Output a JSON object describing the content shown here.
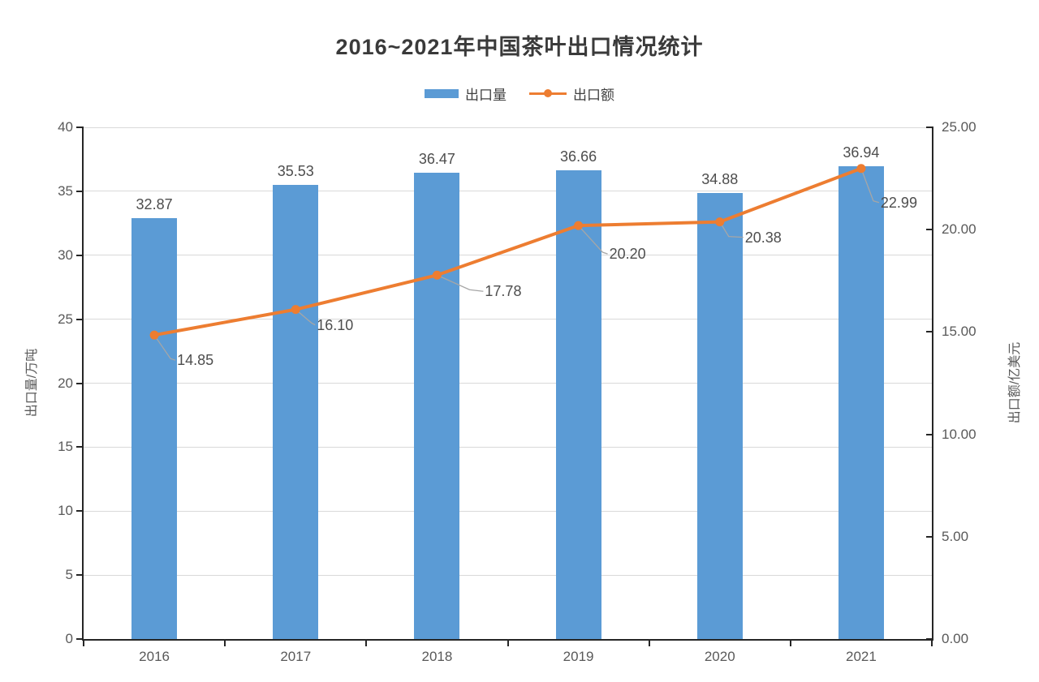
{
  "title": "2016~2021年中国茶叶出口情况统计",
  "legend": {
    "items": [
      {
        "label": "出口量",
        "type": "bar",
        "color": "#5B9BD5"
      },
      {
        "label": "出口额",
        "type": "line",
        "color": "#ED7D31"
      }
    ]
  },
  "chart_data": {
    "type": "combo-bar-line",
    "title": "2016~2021年中国茶叶出口情况统计",
    "categories": [
      "2016",
      "2017",
      "2018",
      "2019",
      "2020",
      "2021"
    ],
    "series": [
      {
        "name": "出口量",
        "type": "bar",
        "axis": "left",
        "color": "#5B9BD5",
        "values": [
          32.87,
          35.53,
          36.47,
          36.66,
          34.88,
          36.94
        ],
        "labels": [
          "32.87",
          "35.53",
          "36.47",
          "36.66",
          "34.88",
          "36.94"
        ]
      },
      {
        "name": "出口额",
        "type": "line",
        "axis": "right",
        "color": "#ED7D31",
        "values": [
          14.85,
          16.1,
          17.78,
          20.2,
          20.38,
          22.99
        ],
        "labels": [
          "14.85",
          "16.10",
          "17.78",
          "20.20",
          "20.38",
          "22.99"
        ]
      }
    ],
    "left_axis": {
      "title": "出口量/万吨",
      "min": 0,
      "max": 40,
      "step": 5,
      "tick_labels": [
        "0",
        "5",
        "10",
        "15",
        "20",
        "25",
        "30",
        "35",
        "40"
      ]
    },
    "right_axis": {
      "title": "出口额/亿美元",
      "min": 0,
      "max": 25,
      "step": 5,
      "tick_labels": [
        "0.00",
        "5.00",
        "10.00",
        "15.00",
        "20.00",
        "25.00"
      ]
    },
    "grid": true,
    "legend_position": "top",
    "colors": {
      "gridline": "#d9d9d9",
      "axis": "#262626",
      "leader": "#a6a6a6"
    }
  }
}
